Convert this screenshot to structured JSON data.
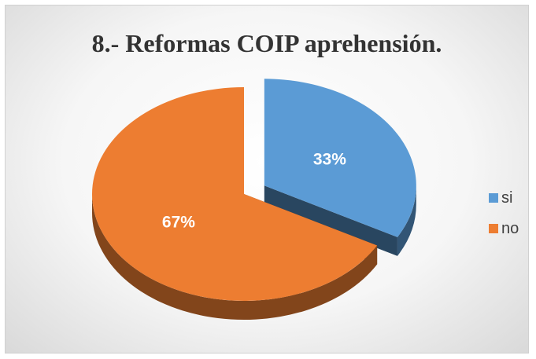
{
  "chart_data": {
    "type": "pie",
    "title": "8.- Reformas COIP aprehensión.",
    "categories": [
      "si",
      "no"
    ],
    "values": [
      33,
      67
    ],
    "data_labels": [
      "33%",
      "67%"
    ],
    "colors": [
      "#5B9BD5",
      "#ED7D31"
    ],
    "exploded_slice": "si",
    "style": "3d",
    "legend": {
      "position": "right",
      "entries": [
        "si",
        "no"
      ]
    }
  }
}
